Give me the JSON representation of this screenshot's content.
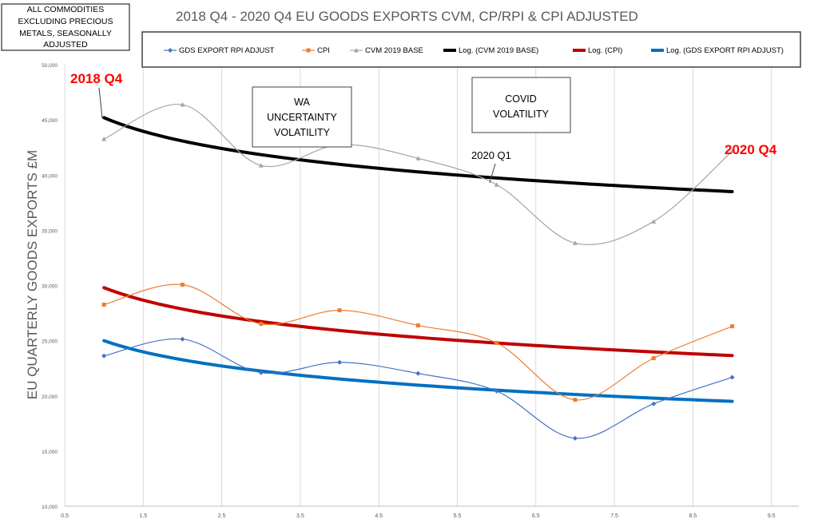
{
  "chart_data": {
    "type": "line",
    "title": "2018 Q4 - 2020 Q4 EU GOODS EXPORTS CVM, CP/RPI & CPI ADJUSTED",
    "xlabel": "",
    "ylabel": "EU QUARTERLY GOODS EXPORTS £M",
    "xlim": [
      0.5,
      9.8
    ],
    "ylim": [
      10000,
      50000
    ],
    "x_ticks": [
      "0.5",
      "1.5",
      "2.5",
      "3.5",
      "4.5",
      "5.5",
      "6.5",
      "7.5",
      "8.5",
      "9.5"
    ],
    "y_ticks": [
      "10,000",
      "15,000",
      "20,000",
      "25,000",
      "30,000",
      "35,000",
      "40,000",
      "45,000",
      "50,000"
    ],
    "legend_position": "top",
    "x": [
      1,
      2,
      3,
      4,
      5,
      6,
      7,
      8,
      9
    ],
    "series": [
      {
        "name": "GDS EXPORT RPI ADJUST",
        "color": "#4472c4",
        "marker": "diamond",
        "values": [
          23620,
          25140,
          22100,
          23040,
          22030,
          20430,
          16160,
          19280,
          21680
        ]
      },
      {
        "name": "CPI",
        "color": "#ed7d31",
        "marker": "square",
        "values": [
          28260,
          30070,
          26520,
          27750,
          26380,
          24800,
          19640,
          23410,
          26300
        ]
      },
      {
        "name": "CVM 2019 BASE",
        "color": "#a5a5a5",
        "marker": "triangle",
        "values": [
          43260,
          46380,
          40870,
          42750,
          41520,
          39130,
          33840,
          35800,
          42170
        ]
      }
    ],
    "trendlines": [
      {
        "name": "Log. (CVM 2019 BASE)",
        "color": "#000000",
        "type": "log",
        "start": 45200,
        "end": 38500
      },
      {
        "name": "Log. (CPI)",
        "color": "#c00000",
        "type": "log",
        "start": 29800,
        "end": 23650
      },
      {
        "name": "Log. (GDS EXPORT RPI ADJUST)",
        "color": "#0070c0",
        "type": "log",
        "start": 25000,
        "end": 19500
      }
    ],
    "info_box": [
      "ALL COMMODITIES",
      "EXCLUDING PRECIOUS",
      "METALS, SEASONALLY",
      "ADJUSTED"
    ],
    "annotations": {
      "start_label": "2018 Q4",
      "end_label": "2020 Q4",
      "covid_start": "2020 Q1",
      "wa_box": [
        "WA",
        "UNCERTAINTY",
        "VOLATILITY"
      ],
      "covid_box": [
        "COVID",
        "VOLATILITY"
      ]
    }
  }
}
